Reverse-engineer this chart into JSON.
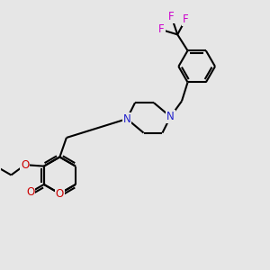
{
  "bg_color": "#e6e6e6",
  "bond_color": "#000000",
  "bond_width": 1.5,
  "atom_colors": {
    "C": "#000000",
    "N": "#2222cc",
    "O": "#cc0000",
    "F": "#cc00cc"
  },
  "font_size": 8.5,
  "fig_size": [
    3.0,
    3.0
  ],
  "dpi": 100
}
